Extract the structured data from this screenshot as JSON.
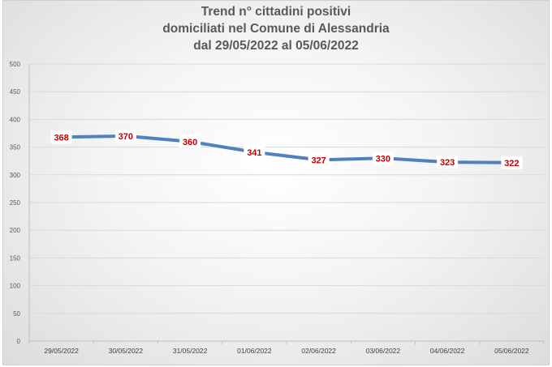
{
  "title": {
    "line1": "Trend n° cittadini positivi",
    "line2": "domiciliati nel Comune di Alessandria",
    "line3": "dal 29/05/2022 al 05/06/2022"
  },
  "colors": {
    "line": "#4f81bd",
    "data_label": "#c00000",
    "grid": "#d9d9d9",
    "text": "#595959"
  },
  "chart_data": {
    "type": "line",
    "title": "Trend n° cittadini positivi domiciliati nel Comune di Alessandria dal 29/05/2022 al 05/06/2022",
    "xlabel": "",
    "ylabel": "",
    "categories": [
      "29/05/2022",
      "30/05/2022",
      "31/05/2022",
      "01/06/2022",
      "02/06/2022",
      "03/06/2022",
      "04/06/2022",
      "05/06/2022"
    ],
    "series": [
      {
        "values": [
          368,
          370,
          360,
          341,
          327,
          330,
          323,
          322
        ]
      }
    ],
    "ylim": [
      0,
      500
    ],
    "yticks": [
      0,
      50,
      100,
      150,
      200,
      250,
      300,
      350,
      400,
      450,
      500
    ],
    "grid": true,
    "legend": "none",
    "data_labels": true
  }
}
